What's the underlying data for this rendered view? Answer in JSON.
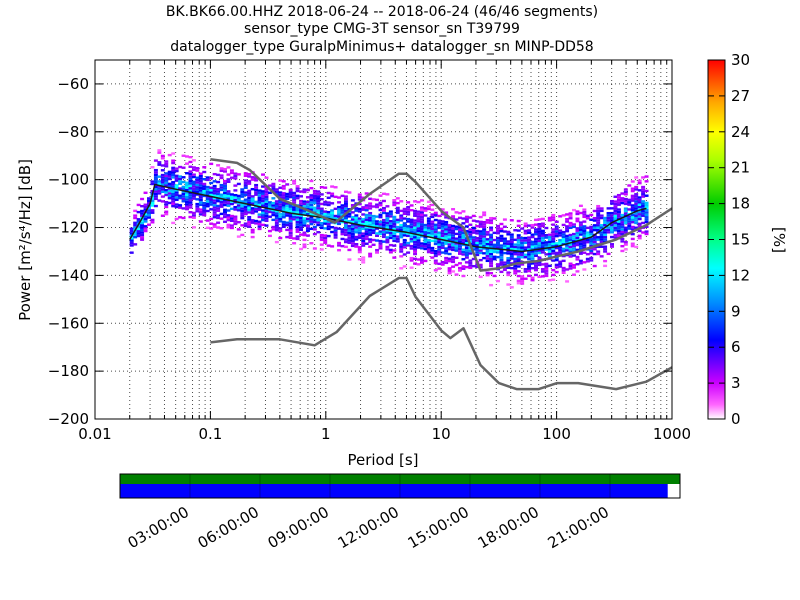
{
  "chart_data": {
    "type": "heatmap",
    "title_lines": [
      "BK.BK66.00.HHZ   2018-06-24 -- 2018-06-24  (46/46 segments)",
      "sensor_type CMG-3T sensor_sn T39799",
      "datalogger_type GuralpMinimus+ datalogger_sn MINP-DD58"
    ],
    "xlabel": "Period [s]",
    "ylabel": "Power [m²/s⁴/Hz] [dB]",
    "x_scale": "log",
    "xlim": [
      0.01,
      1000
    ],
    "ylim": [
      -200,
      -50
    ],
    "x_tick_labels": [
      "0.01",
      "0.1",
      "1",
      "10",
      "100",
      "1000"
    ],
    "y_tick_labels": [
      "−200",
      "−180",
      "−160",
      "−140",
      "−120",
      "−100",
      "−80",
      "−60"
    ],
    "colorbar": {
      "label": "[%]",
      "range": [
        0,
        30
      ],
      "tick_labels": [
        "0",
        "3",
        "6",
        "9",
        "12",
        "15",
        "18",
        "21",
        "24",
        "27",
        "30"
      ]
    },
    "noise_model_high": {
      "period": [
        0.1,
        0.17,
        0.22,
        0.4,
        0.8,
        1.2,
        2.4,
        4.3,
        5,
        6,
        10,
        12,
        15.6,
        21.9,
        31.6,
        45,
        70,
        101,
        154,
        328,
        600,
        1000
      ],
      "db": [
        -91.5,
        -93,
        -96,
        -108,
        -114,
        -118,
        -106,
        -97.5,
        -97.5,
        -101,
        -113,
        -116,
        -120,
        -138,
        -137,
        -135,
        -134,
        -132,
        -130,
        -125,
        -119,
        -112
      ]
    },
    "noise_model_low": {
      "period": [
        0.1,
        0.17,
        0.4,
        0.8,
        1.24,
        2.4,
        4.3,
        5,
        6,
        10,
        12,
        15.6,
        21.9,
        31.6,
        45,
        70,
        101,
        154,
        328,
        600,
        1000
      ],
      "db": [
        -168,
        -166.7,
        -166.7,
        -169.2,
        -163.7,
        -148.6,
        -141.1,
        -141.1,
        -149,
        -163,
        -166.2,
        -162.1,
        -177.5,
        -185,
        -187.5,
        -187.5,
        -185,
        -185,
        -187.5,
        -184.4,
        -178.4
      ]
    },
    "psd_median": {
      "period": [
        0.02,
        0.025,
        0.03,
        0.033,
        0.05,
        0.1,
        0.2,
        0.5,
        1,
        2,
        5,
        10,
        20,
        50,
        100,
        200,
        300,
        500,
        600
      ],
      "db": [
        -125,
        -117,
        -110,
        -102,
        -104,
        -107,
        -110,
        -114,
        -116,
        -119,
        -122,
        -125,
        -128,
        -130,
        -128,
        -124,
        -118,
        -113,
        -112
      ]
    },
    "timeline": {
      "time_tick_labels": [
        "03:00:00",
        "06:00:00",
        "09:00:00",
        "12:00:00",
        "15:00:00",
        "18:00:00",
        "21:00:00"
      ],
      "data_coverage_fraction": 0.978,
      "top_bar_color": "#008000",
      "bottom_bar_color": "#0000ff"
    }
  }
}
